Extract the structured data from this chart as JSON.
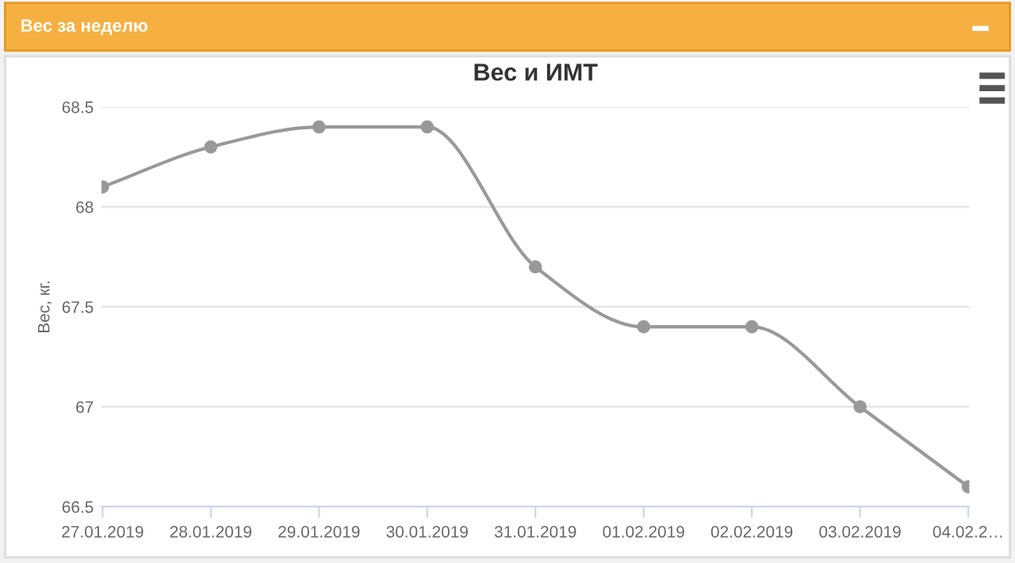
{
  "chart_data": {
    "type": "line",
    "title": "Вес и ИМТ",
    "ylabel": "Вес, кг.",
    "annotations": [
      "Вес за неделю"
    ],
    "categories": [
      "27.01.2019",
      "28.01.2019",
      "29.01.2019",
      "30.01.2019",
      "31.01.2019",
      "01.02.2019",
      "02.02.2019",
      "03.02.2019",
      "04.02.2…"
    ],
    "series": [
      {
        "color": "#999999",
        "values": [
          68.1,
          68.3,
          68.4,
          68.4,
          67.7,
          67.4,
          67.4,
          67.0,
          66.6
        ]
      }
    ],
    "ylim": [
      66.5,
      68.5
    ],
    "yticks": [
      66.5,
      67,
      67.5,
      68,
      68.5
    ],
    "grid": "y",
    "marker": "circle",
    "legend": false
  }
}
